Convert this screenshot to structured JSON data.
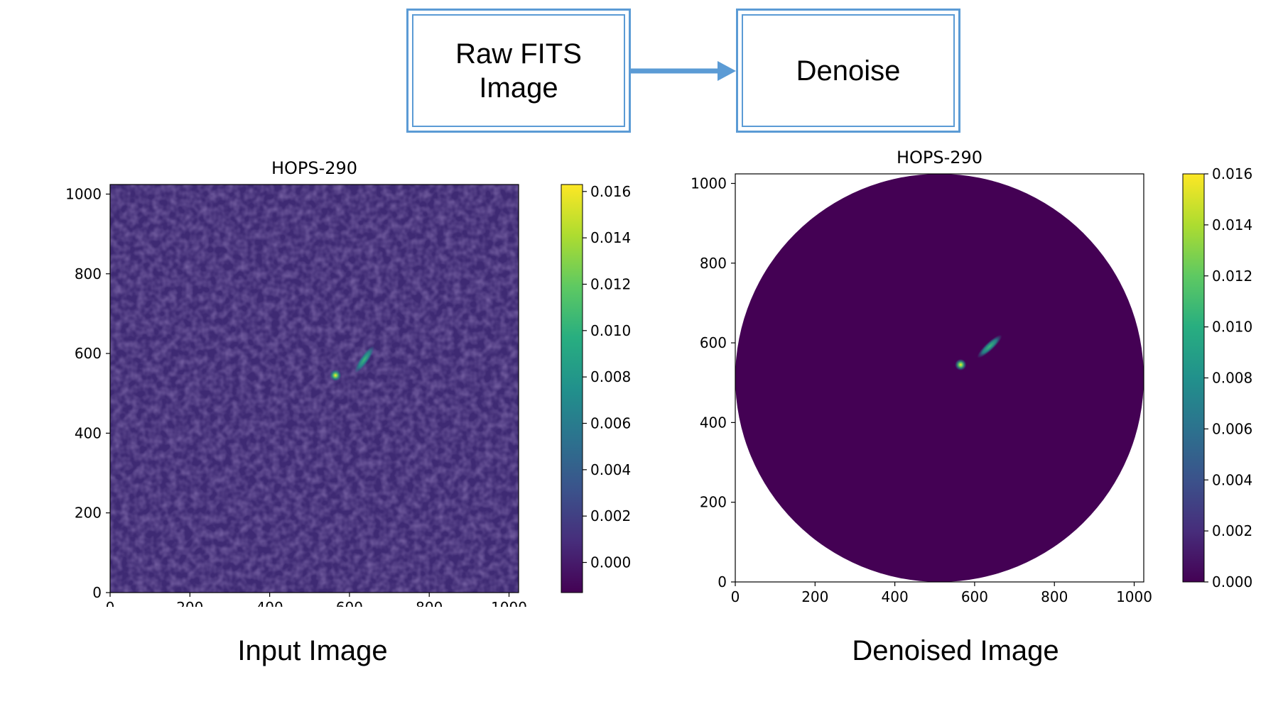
{
  "flow": {
    "box1": "Raw FITS\nImage",
    "box2": "Denoise",
    "arrow_color": "#5b9bd5"
  },
  "chart_data": [
    {
      "type": "heatmap",
      "title": "HOPS-290",
      "caption": "Input Image",
      "xticks": [
        0,
        200,
        400,
        600,
        800,
        1000
      ],
      "yticks": [
        0,
        200,
        400,
        600,
        800,
        1000
      ],
      "xlim": [
        0,
        1024
      ],
      "ylim": [
        0,
        1024
      ],
      "colormap": "viridis",
      "colorbar": {
        "ticks": [
          "0.016",
          "0.014",
          "0.012",
          "0.010",
          "0.008",
          "0.006",
          "0.004",
          "0.002",
          "0.000"
        ],
        "min": -0.0013,
        "max": 0.0163
      },
      "features": {
        "point_source": [
          565,
          545
        ],
        "outflow": [
          [
            620,
            560
          ],
          [
            655,
            610
          ]
        ]
      }
    },
    {
      "type": "heatmap",
      "title": "HOPS-290",
      "caption": "Denoised Image",
      "xticks": [
        0,
        200,
        400,
        600,
        800,
        1000
      ],
      "yticks": [
        0,
        200,
        400,
        600,
        800,
        1000
      ],
      "xlim": [
        0,
        1024
      ],
      "ylim": [
        0,
        1024
      ],
      "colormap": "viridis",
      "mask": "circular",
      "colorbar": {
        "ticks": [
          "0.016",
          "0.014",
          "0.012",
          "0.010",
          "0.008",
          "0.006",
          "0.004",
          "0.002",
          "0.000"
        ],
        "min": 0.0,
        "max": 0.016
      },
      "features": {
        "point_source": [
          565,
          545
        ],
        "outflow": [
          [
            615,
            570
          ],
          [
            660,
            612
          ]
        ]
      }
    }
  ]
}
